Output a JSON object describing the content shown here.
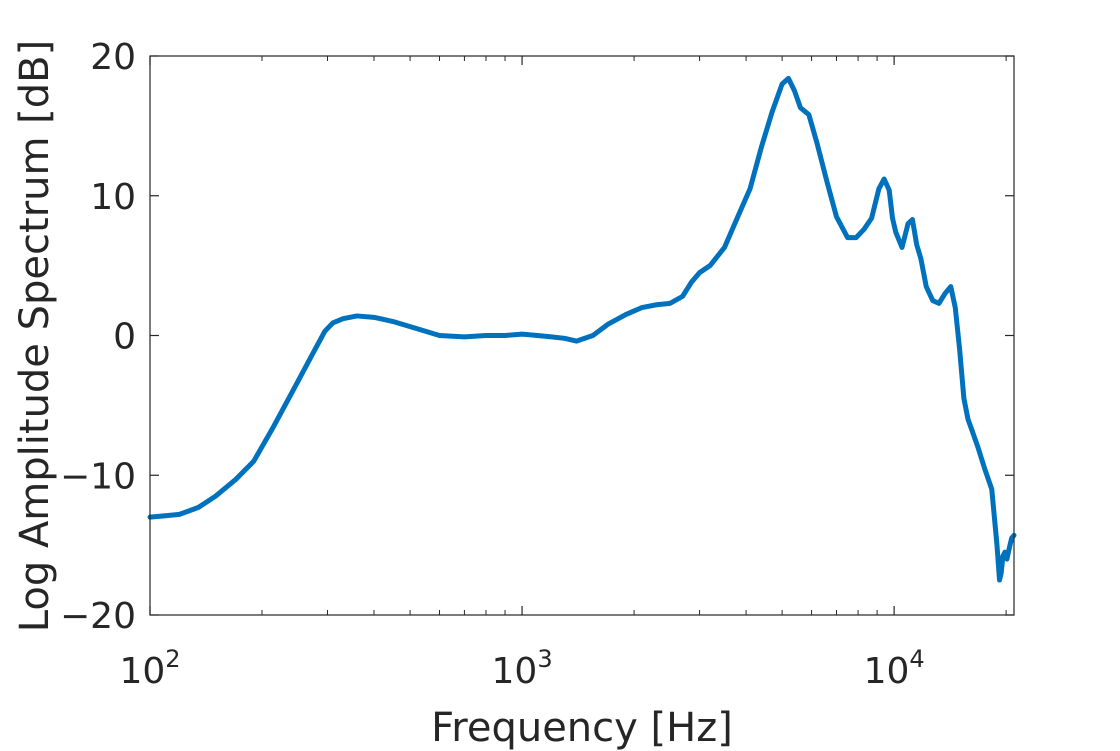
{
  "chart_data": {
    "type": "line",
    "title": "",
    "xlabel": "Frequency [Hz]",
    "ylabel": "Log Amplitude Spectrum [dB]",
    "xscale": "log",
    "xlim": [
      100,
      21000
    ],
    "ylim": [
      -20,
      20
    ],
    "grid": false,
    "x_ticks": [
      {
        "value": 100,
        "base": "10",
        "exp": "2"
      },
      {
        "value": 1000,
        "base": "10",
        "exp": "3"
      },
      {
        "value": 10000,
        "base": "10",
        "exp": "4"
      }
    ],
    "y_ticks": [
      {
        "value": 20,
        "label": "20"
      },
      {
        "value": 10,
        "label": "10"
      },
      {
        "value": 0,
        "label": "0"
      },
      {
        "value": -10,
        "label": "−10"
      },
      {
        "value": -20,
        "label": "−20"
      }
    ],
    "series": [
      {
        "name": "",
        "color": "#0072BD",
        "x": [
          100,
          110,
          120,
          135,
          150,
          170,
          190,
          215,
          245,
          275,
          295,
          310,
          330,
          360,
          400,
          450,
          520,
          600,
          700,
          800,
          900,
          1000,
          1100,
          1200,
          1300,
          1400,
          1550,
          1700,
          1900,
          2100,
          2300,
          2500,
          2700,
          2850,
          3000,
          3200,
          3500,
          3800,
          4100,
          4400,
          4700,
          5000,
          5200,
          5400,
          5600,
          5900,
          6200,
          6600,
          7000,
          7500,
          7900,
          8300,
          8700,
          9100,
          9400,
          9700,
          9900,
          10100,
          10500,
          10900,
          11200,
          11500,
          11800,
          12200,
          12700,
          13200,
          13700,
          14200,
          14600,
          15000,
          15400,
          15800,
          16200,
          16800,
          17500,
          18300,
          18900,
          19200,
          19400,
          19600,
          19850,
          20100,
          20400,
          20700,
          21000
        ],
        "y": [
          -13.0,
          -12.9,
          -12.8,
          -12.3,
          -11.5,
          -10.3,
          -9.0,
          -6.5,
          -3.7,
          -1.2,
          0.3,
          0.9,
          1.2,
          1.4,
          1.3,
          1.0,
          0.5,
          0.0,
          -0.1,
          0.0,
          0.0,
          0.1,
          0.0,
          -0.1,
          -0.2,
          -0.4,
          0.0,
          0.8,
          1.5,
          2.0,
          2.2,
          2.3,
          2.8,
          3.8,
          4.5,
          5.0,
          6.3,
          8.5,
          10.5,
          13.5,
          16.0,
          18.0,
          18.4,
          17.5,
          16.3,
          15.8,
          13.8,
          11.0,
          8.5,
          7.0,
          7.0,
          7.6,
          8.4,
          10.5,
          11.2,
          10.4,
          8.4,
          7.4,
          6.3,
          8.0,
          8.3,
          6.5,
          5.5,
          3.5,
          2.5,
          2.3,
          3.0,
          3.5,
          2.0,
          -1.0,
          -4.5,
          -6.0,
          -6.8,
          -8.0,
          -9.5,
          -11.0,
          -15.0,
          -17.5,
          -17.0,
          -15.8,
          -15.5,
          -16.0,
          -15.2,
          -14.5,
          -14.3
        ]
      }
    ]
  }
}
